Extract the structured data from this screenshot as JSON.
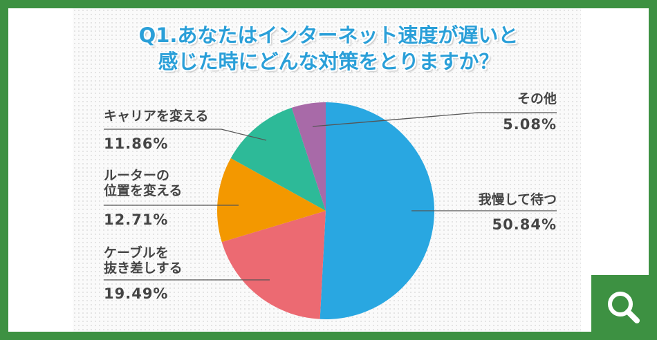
{
  "chart_data": {
    "type": "pie",
    "title": [
      "Q1.あなたはインターネット速度が遅いと",
      "感じた時にどんな対策をとりますか？"
    ],
    "categories": [
      "我慢して待つ",
      "ケーブルを\n抜き差しする",
      "ルーターの\n位置を変える",
      "キャリアを変える",
      "その他"
    ],
    "values": [
      50.84,
      19.49,
      12.71,
      11.86,
      5.08
    ],
    "value_labels": [
      "50.84%",
      "19.49%",
      "12.71%",
      "11.86%",
      "5.08%"
    ],
    "colors": [
      "#29a7e1",
      "#ec6a72",
      "#f39800",
      "#2dba98",
      "#a86aa8"
    ]
  }
}
